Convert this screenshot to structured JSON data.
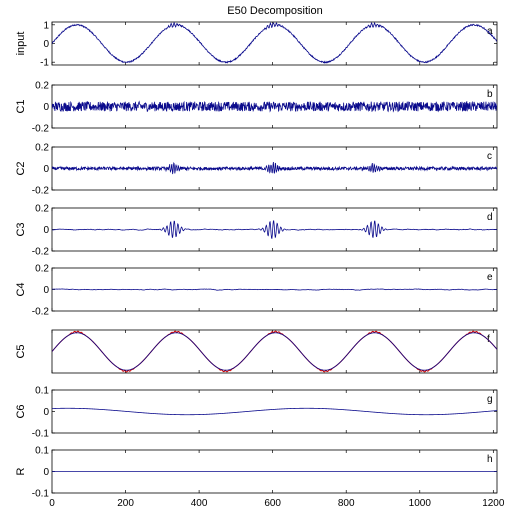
{
  "chart_data": {
    "type": "line",
    "title": "E50 Decomposition",
    "xlim": [
      0,
      1210
    ],
    "x_ticks": [
      "0",
      "200",
      "400",
      "600",
      "800",
      "1000",
      "1200"
    ],
    "sampling": {
      "x_start": 0,
      "x_end": 1210,
      "samples": 1211
    },
    "colors": {
      "signal": "#0a0a8c",
      "overlay": "#cc0000",
      "axis": "#000000"
    },
    "panels": [
      {
        "id": "input",
        "ylabel": "input",
        "letter": "a",
        "ylim": [
          -1.15,
          1.15
        ],
        "y_ticks": [
          "1",
          "0",
          "-1"
        ],
        "y_tick_values": [
          1,
          0,
          -1
        ],
        "components": [
          {
            "kind": "sine",
            "amplitude": 1.0,
            "period_samples": 270,
            "phase_samples": 0
          },
          {
            "kind": "noise",
            "amplitude": 0.035
          },
          {
            "kind": "burst",
            "center": 330,
            "width": 12,
            "amplitude": 0.1,
            "cycle_samples": 8
          },
          {
            "kind": "burst",
            "center": 600,
            "width": 12,
            "amplitude": 0.12,
            "cycle_samples": 8
          },
          {
            "kind": "burst",
            "center": 875,
            "width": 12,
            "amplitude": 0.1,
            "cycle_samples": 8
          }
        ]
      },
      {
        "id": "C1",
        "ylabel": "C1",
        "letter": "b",
        "ylim": [
          -0.2,
          0.2
        ],
        "y_ticks": [
          "0.2",
          "0",
          "-0.2"
        ],
        "y_tick_values": [
          0.2,
          0,
          -0.2
        ],
        "components": [
          {
            "kind": "noise",
            "amplitude": 0.045
          }
        ]
      },
      {
        "id": "C2",
        "ylabel": "C2",
        "letter": "c",
        "ylim": [
          -0.2,
          0.2
        ],
        "y_ticks": [
          "0.2",
          "0",
          "-0.2"
        ],
        "y_tick_values": [
          0.2,
          0,
          -0.2
        ],
        "components": [
          {
            "kind": "noise",
            "amplitude": 0.015
          },
          {
            "kind": "burst",
            "center": 330,
            "width": 10,
            "amplitude": 0.05,
            "cycle_samples": 6
          },
          {
            "kind": "burst",
            "center": 600,
            "width": 10,
            "amplitude": 0.055,
            "cycle_samples": 6
          },
          {
            "kind": "burst",
            "center": 875,
            "width": 10,
            "amplitude": 0.045,
            "cycle_samples": 6
          }
        ]
      },
      {
        "id": "C3",
        "ylabel": "C3",
        "letter": "d",
        "ylim": [
          -0.2,
          0.2
        ],
        "y_ticks": [
          "0.2",
          "0",
          "-0.2"
        ],
        "y_tick_values": [
          0.2,
          0,
          -0.2
        ],
        "components": [
          {
            "kind": "noise",
            "amplitude": 0.006,
            "smooth": 6
          },
          {
            "kind": "burst",
            "center": 330,
            "width": 14,
            "amplitude": 0.08,
            "cycle_samples": 10
          },
          {
            "kind": "burst",
            "center": 600,
            "width": 14,
            "amplitude": 0.085,
            "cycle_samples": 10
          },
          {
            "kind": "burst",
            "center": 875,
            "width": 14,
            "amplitude": 0.08,
            "cycle_samples": 10
          }
        ]
      },
      {
        "id": "C4",
        "ylabel": "C4",
        "letter": "e",
        "ylim": [
          -0.2,
          0.2
        ],
        "y_ticks": [
          "0.2",
          "0",
          "-0.2"
        ],
        "y_tick_values": [
          0.2,
          0,
          -0.2
        ],
        "components": [
          {
            "kind": "noise",
            "amplitude": 0.006,
            "smooth": 10
          }
        ]
      },
      {
        "id": "C5",
        "ylabel": "C5",
        "letter": "f",
        "ylim": [
          -1.15,
          1.15
        ],
        "y_ticks": [],
        "y_tick_values": [],
        "overlay_color": "#cc0000",
        "components": [
          {
            "kind": "sine",
            "amplitude": 1.0,
            "period_samples": 270,
            "phase_samples": 0
          }
        ]
      },
      {
        "id": "C6",
        "ylabel": "C6",
        "letter": "g",
        "ylim": [
          -0.1,
          0.1
        ],
        "y_ticks": [
          "0.1",
          "0",
          "-0.1"
        ],
        "y_tick_values": [
          0.1,
          0,
          -0.1
        ],
        "components": [
          {
            "kind": "sine",
            "amplitude": 0.015,
            "period_samples": 650,
            "phase_samples": -120
          }
        ]
      },
      {
        "id": "R",
        "ylabel": "R",
        "letter": "h",
        "ylim": [
          -0.1,
          0.1
        ],
        "y_ticks": [
          "0.1",
          "0",
          "-0.1"
        ],
        "y_tick_values": [
          0.1,
          0,
          -0.1
        ],
        "components": []
      }
    ]
  }
}
